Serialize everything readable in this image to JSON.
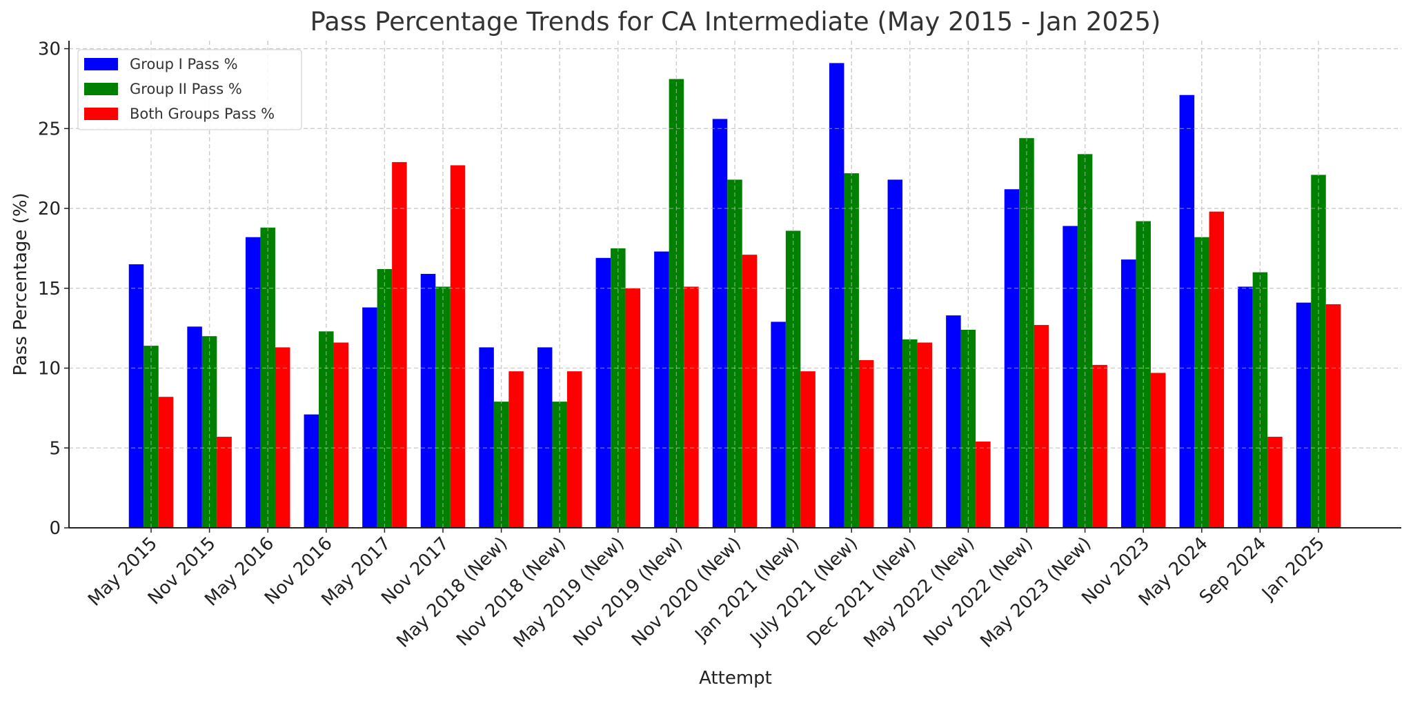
{
  "chart_data": {
    "type": "bar",
    "title": "Pass Percentage Trends for CA Intermediate (May 2015 - Jan 2025)",
    "xlabel": "Attempt",
    "ylabel": "Pass Percentage (%)",
    "ylim": [
      0,
      30.5
    ],
    "yticks": [
      0,
      5,
      10,
      15,
      20,
      25,
      30
    ],
    "grid": true,
    "legend_position": "upper left",
    "categories": [
      "May 2015",
      "Nov 2015",
      "May 2016",
      "Nov 2016",
      "May 2017",
      "Nov 2017",
      "May 2018 (New)",
      "Nov 2018 (New)",
      "May 2019 (New)",
      "Nov 2019 (New)",
      "Nov 2020 (New)",
      "Jan 2021 (New)",
      "July 2021 (New)",
      "Dec 2021 (New)",
      "May 2022 (New)",
      "Nov 2022 (New)",
      "May 2023 (New)",
      "Nov 2023",
      "May 2024",
      "Sep 2024",
      "Jan 2025"
    ],
    "series": [
      {
        "name": "Group I Pass %",
        "color": "#0000ff",
        "values": [
          16.5,
          12.6,
          18.2,
          7.1,
          13.8,
          15.9,
          11.3,
          11.3,
          16.9,
          17.3,
          25.6,
          12.9,
          29.1,
          21.8,
          13.3,
          21.2,
          18.9,
          16.8,
          27.1,
          15.1,
          14.1
        ]
      },
      {
        "name": "Group II Pass %",
        "color": "#008000",
        "values": [
          11.4,
          12.0,
          18.8,
          12.3,
          16.2,
          15.1,
          7.9,
          7.9,
          17.5,
          28.1,
          21.8,
          18.6,
          22.2,
          11.8,
          12.4,
          24.4,
          23.4,
          19.2,
          18.2,
          16.0,
          22.1
        ]
      },
      {
        "name": "Both Groups Pass %",
        "color": "#ff0000",
        "values": [
          8.2,
          5.7,
          11.3,
          11.6,
          22.9,
          22.7,
          9.8,
          9.8,
          15.0,
          15.1,
          17.1,
          9.8,
          10.5,
          11.6,
          5.4,
          12.7,
          10.2,
          9.7,
          19.8,
          5.7,
          14.0
        ]
      }
    ]
  }
}
